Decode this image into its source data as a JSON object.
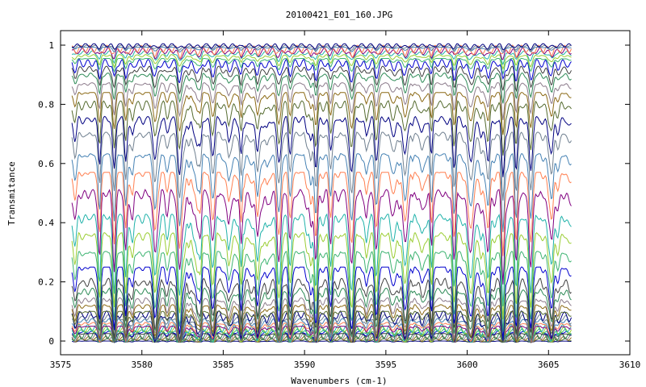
{
  "chart_data": {
    "type": "line",
    "title": "20100421_E01_160.JPG",
    "xlabel": "Wavenumbers (cm-1)",
    "ylabel": "Transmitance",
    "xlim": [
      3575,
      3610
    ],
    "ylim": [
      0,
      1
    ],
    "x_range_data": [
      3575.7,
      3606.4
    ],
    "xticks": [
      3575,
      3580,
      3585,
      3590,
      3595,
      3600,
      3605,
      3610
    ],
    "yticks": [
      0,
      0.2,
      0.4,
      0.6,
      0.8,
      1
    ],
    "ytick_labels": [
      "0",
      "0.2",
      "0.4",
      "0.6",
      "0.8",
      "1"
    ],
    "grid": false,
    "legend": "none",
    "absorption_line_centers": [
      3577.4,
      3578.3,
      3579.0,
      3580.8,
      3582.3,
      3583.6,
      3584.4,
      3586.1,
      3587.1,
      3588.4,
      3589.1,
      3590.7,
      3591.6,
      3592.9,
      3594.4,
      3596.2,
      3597.8,
      3599.2,
      3600.2,
      3601.3,
      3602.2,
      3603.0,
      3603.9,
      3605.2
    ],
    "series_colors": [
      "#000080",
      "#556b2f",
      "#8b6914",
      "#8c7b8b",
      "#2e8b57",
      "#404040",
      "#0000cd",
      "#3cb371",
      "#9acd32",
      "#20b2aa",
      "#800080",
      "#ff7f50",
      "#4682b4",
      "#708090"
    ],
    "series_baseline_levels": [
      0.0,
      0.005,
      0.01,
      0.015,
      0.02,
      0.025,
      0.03,
      0.035,
      0.04,
      0.045,
      0.05,
      0.06,
      0.07,
      0.08,
      0.09,
      0.1,
      0.12,
      0.14,
      0.17,
      0.2,
      0.25,
      0.3,
      0.36,
      0.42,
      0.5,
      0.57,
      0.63,
      0.7,
      0.75,
      0.8,
      0.84,
      0.87,
      0.9,
      0.92,
      0.94,
      0.955,
      0.965,
      0.975,
      0.982,
      0.988,
      0.993,
      0.997,
      1.0
    ]
  }
}
